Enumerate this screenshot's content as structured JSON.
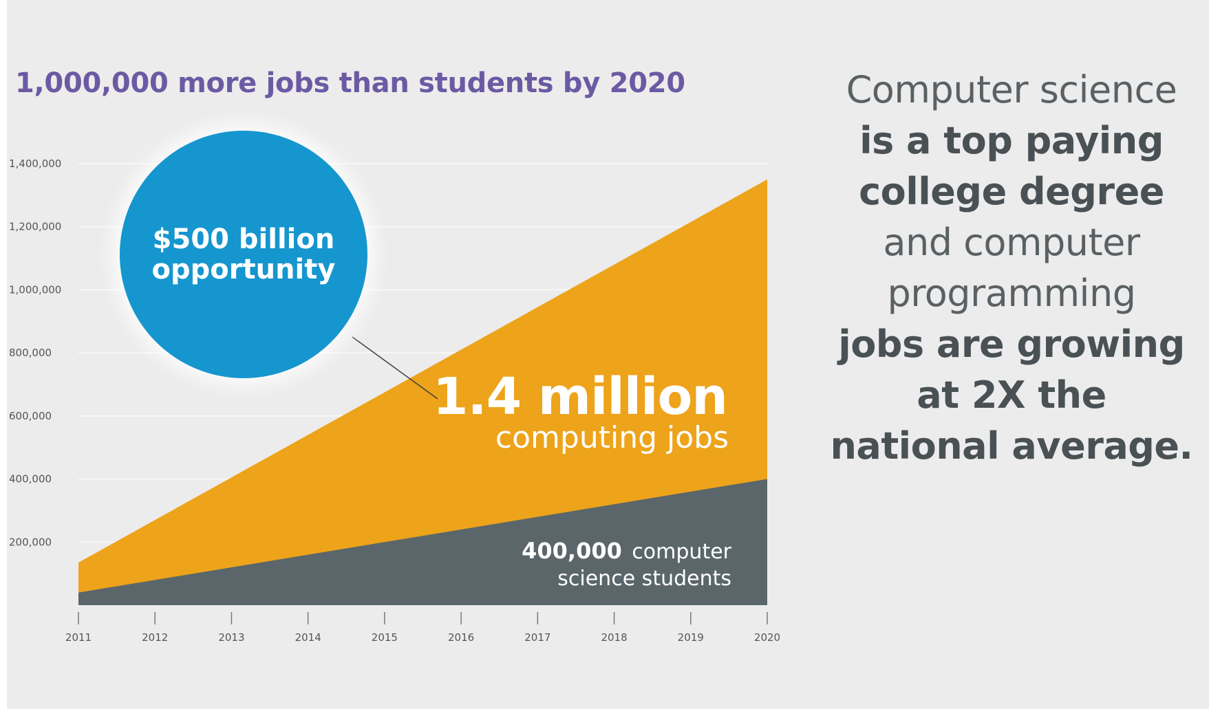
{
  "headline": "1,000,000 more jobs than students by 2020",
  "colors": {
    "background": "#ececec",
    "headline": "#6b5aa3",
    "jobs_area": "#eda31a",
    "students_area": "#5a666a",
    "callout_circle": "#1596cf",
    "side_text": "#4f5557"
  },
  "callout": {
    "line1": "$500 billion",
    "line2": "opportunity"
  },
  "jobs_label": {
    "number": "1.4 million",
    "text": "computing jobs"
  },
  "students_label": {
    "number": "400,000",
    "text_line1": "computer",
    "text_line2": "science students"
  },
  "side_text": [
    {
      "text": "Computer science",
      "strong": false
    },
    {
      "text": "is a top paying",
      "strong": true
    },
    {
      "text": "college degree",
      "strong": true
    },
    {
      "text": "and computer",
      "strong": false
    },
    {
      "text": "programming",
      "strong": false
    },
    {
      "text": "jobs are growing",
      "strong": true
    },
    {
      "text": "at 2X the",
      "strong": true
    },
    {
      "text": "national average.",
      "strong": true
    }
  ],
  "chart_data": {
    "type": "area",
    "title": "1,000,000 more jobs than students by 2020",
    "xlabel": "",
    "ylabel": "",
    "x": [
      "2011",
      "2012",
      "2013",
      "2014",
      "2015",
      "2016",
      "2017",
      "2018",
      "2019",
      "2020"
    ],
    "ylim": [
      0,
      1400000
    ],
    "yticks": [
      {
        "value": 1400000,
        "label": "1,400,000"
      },
      {
        "value": 1200000,
        "label": "1,200,000"
      },
      {
        "value": 1000000,
        "label": "1,000,000"
      },
      {
        "value": 800000,
        "label": "800,000"
      },
      {
        "value": 600000,
        "label": "600,000"
      },
      {
        "value": 400000,
        "label": "400,000"
      },
      {
        "value": 200000,
        "label": "200,000"
      }
    ],
    "grid": true,
    "series": [
      {
        "name": "computing jobs",
        "values": [
          135000,
          270000,
          405000,
          540000,
          675000,
          810000,
          945000,
          1080000,
          1215000,
          1350000
        ]
      },
      {
        "name": "computer science students",
        "values": [
          40000,
          80000,
          120000,
          160000,
          200000,
          240000,
          280000,
          320000,
          360000,
          400000
        ]
      }
    ]
  }
}
